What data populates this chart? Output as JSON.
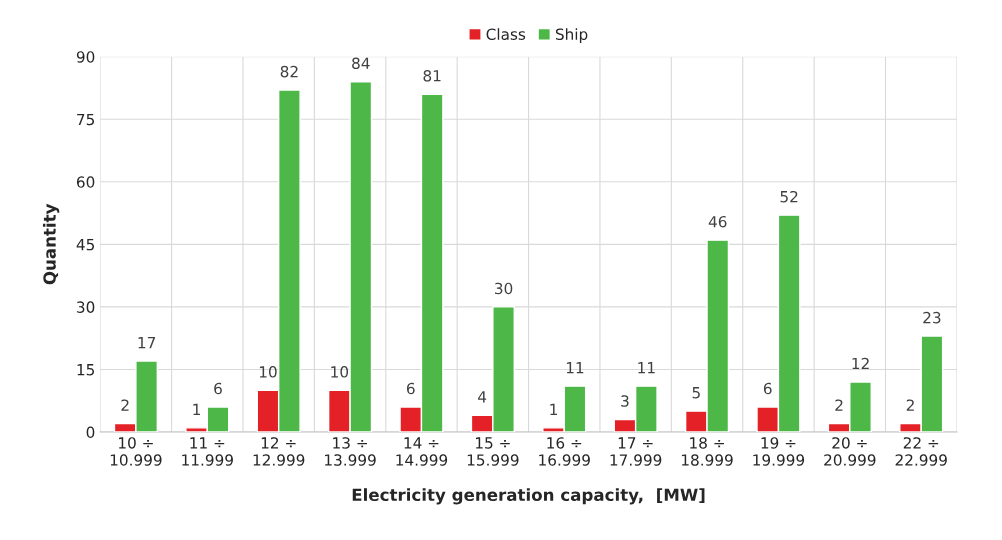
{
  "chart_data": {
    "type": "bar",
    "xlabel": "Electricity generation capacity,  [MW]",
    "ylabel": "Quantity",
    "categories": [
      "10 ÷\n10.999",
      "11 ÷\n11.999",
      "12 ÷\n12.999",
      "13 ÷\n13.999",
      "14 ÷\n14.999",
      "15 ÷\n15.999",
      "16 ÷\n16.999",
      "17 ÷\n17.999",
      "18 ÷\n18.999",
      "19 ÷\n19.999",
      "20 ÷\n20.999",
      "22 ÷\n22.999"
    ],
    "series": [
      {
        "name": "Class",
        "color": "#e32127",
        "values": [
          2,
          1,
          10,
          10,
          6,
          4,
          1,
          3,
          5,
          6,
          2,
          2
        ]
      },
      {
        "name": "Ship",
        "color": "#4db848",
        "values": [
          17,
          6,
          82,
          84,
          81,
          30,
          11,
          11,
          46,
          52,
          12,
          23
        ]
      }
    ],
    "ylim": [
      0,
      90
    ],
    "yticks": [
      0,
      15,
      30,
      45,
      60,
      75,
      90
    ],
    "grid": true,
    "legend": "top",
    "data_labels": true
  }
}
